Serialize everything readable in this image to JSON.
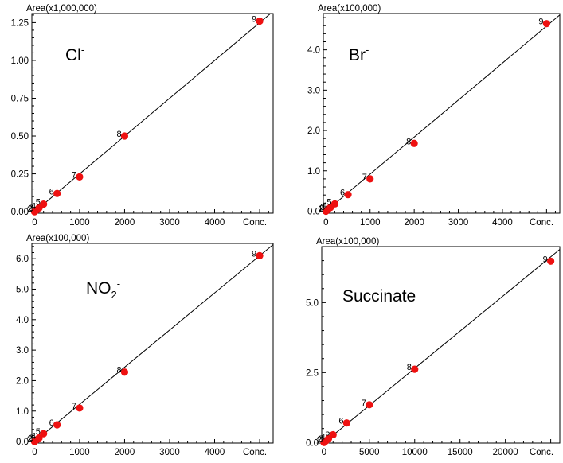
{
  "chart_data": [
    {
      "type": "scatter",
      "ion": {
        "base": "Cl",
        "sub": "",
        "sup": "-"
      },
      "ylabel": "Area(x1,000,000)",
      "xlabel": "Conc.",
      "xlim": [
        -60,
        5300
      ],
      "ylim": [
        -0.01,
        1.31
      ],
      "xticks": [
        0,
        1000,
        2000,
        3000,
        4000
      ],
      "xtick_labels": [
        "0",
        "1000",
        "2000",
        "3000",
        "4000"
      ],
      "yticks": [
        0.0,
        0.25,
        0.5,
        0.75,
        1.0,
        1.25
      ],
      "ytick_labels": [
        "0.00",
        "0.25",
        "0.50",
        "0.75",
        "1.00",
        "1.25"
      ],
      "fit_line": [
        [
          -60,
          -0.0155
        ],
        [
          5300,
          1.3245
        ]
      ],
      "points": [
        {
          "label": "1",
          "x": 0,
          "y": 0.0
        },
        {
          "label": "2",
          "x": 20,
          "y": 0.005
        },
        {
          "label": "3",
          "x": 50,
          "y": 0.012
        },
        {
          "label": "4",
          "x": 100,
          "y": 0.025
        },
        {
          "label": "5",
          "x": 200,
          "y": 0.05
        },
        {
          "label": "6",
          "x": 500,
          "y": 0.12
        },
        {
          "label": "7",
          "x": 1000,
          "y": 0.23
        },
        {
          "label": "8",
          "x": 2000,
          "y": 0.5
        },
        {
          "label": "9",
          "x": 5000,
          "y": 1.26
        }
      ]
    },
    {
      "type": "scatter",
      "ion": {
        "base": "Br",
        "sub": "",
        "sup": "-"
      },
      "ylabel": "Area(x100,000)",
      "xlabel": "Conc.",
      "xlim": [
        -60,
        5300
      ],
      "ylim": [
        -0.05,
        4.9
      ],
      "xticks": [
        0,
        1000,
        2000,
        3000,
        4000
      ],
      "xtick_labels": [
        "0",
        "1000",
        "2000",
        "3000",
        "4000"
      ],
      "yticks": [
        0.0,
        1.0,
        2.0,
        3.0,
        4.0
      ],
      "ytick_labels": [
        "0.0",
        "1.0",
        "2.0",
        "3.0",
        "4.0"
      ],
      "fit_line": [
        [
          -60,
          -0.055
        ],
        [
          5300,
          4.865
        ]
      ],
      "points": [
        {
          "label": "1",
          "x": 0,
          "y": 0.0
        },
        {
          "label": "2",
          "x": 20,
          "y": 0.02
        },
        {
          "label": "3",
          "x": 50,
          "y": 0.05
        },
        {
          "label": "4",
          "x": 100,
          "y": 0.09
        },
        {
          "label": "5",
          "x": 200,
          "y": 0.18
        },
        {
          "label": "6",
          "x": 500,
          "y": 0.41
        },
        {
          "label": "7",
          "x": 1000,
          "y": 0.8
        },
        {
          "label": "8",
          "x": 2000,
          "y": 1.68
        },
        {
          "label": "9",
          "x": 5000,
          "y": 4.65
        }
      ]
    },
    {
      "type": "scatter",
      "ion": {
        "base": "NO",
        "sub": "2",
        "sup": "-"
      },
      "ylabel": "Area(x100,000)",
      "xlabel": "Conc.",
      "xlim": [
        -60,
        5300
      ],
      "ylim": [
        -0.05,
        6.5
      ],
      "xticks": [
        0,
        1000,
        2000,
        3000,
        4000
      ],
      "xtick_labels": [
        "0",
        "1000",
        "2000",
        "3000",
        "4000"
      ],
      "yticks": [
        0.0,
        1.0,
        2.0,
        3.0,
        4.0,
        5.0,
        6.0
      ],
      "ytick_labels": [
        "0.0",
        "1.0",
        "2.0",
        "3.0",
        "4.0",
        "5.0",
        "6.0"
      ],
      "fit_line": [
        [
          -60,
          -0.07
        ],
        [
          5300,
          6.46
        ]
      ],
      "points": [
        {
          "label": "1",
          "x": 0,
          "y": 0.0
        },
        {
          "label": "2",
          "x": 20,
          "y": 0.03
        },
        {
          "label": "3",
          "x": 50,
          "y": 0.06
        },
        {
          "label": "4",
          "x": 100,
          "y": 0.12
        },
        {
          "label": "5",
          "x": 200,
          "y": 0.26
        },
        {
          "label": "6",
          "x": 500,
          "y": 0.55
        },
        {
          "label": "7",
          "x": 1000,
          "y": 1.1
        },
        {
          "label": "8",
          "x": 2000,
          "y": 2.28
        },
        {
          "label": "9",
          "x": 5000,
          "y": 6.1
        }
      ]
    },
    {
      "type": "scatter",
      "ion": {
        "base": "Succinate",
        "sub": "",
        "sup": ""
      },
      "ylabel": "Area(x100,000)",
      "xlabel": "Conc.",
      "xlim": [
        -250,
        26000
      ],
      "ylim": [
        -0.02,
        7.0
      ],
      "xticks": [
        0,
        5000,
        10000,
        15000,
        20000
      ],
      "xtick_labels": [
        "0",
        "5000",
        "10000",
        "15000",
        "20000"
      ],
      "yticks": [
        0.0,
        2.5,
        5.0
      ],
      "ytick_labels": [
        "0.0",
        "2.5",
        "5.0"
      ],
      "fit_line": [
        [
          -250,
          -0.07
        ],
        [
          26000,
          6.9
        ]
      ],
      "points": [
        {
          "label": "1",
          "x": 0,
          "y": 0.0
        },
        {
          "label": "2",
          "x": 100,
          "y": 0.03
        },
        {
          "label": "3",
          "x": 250,
          "y": 0.07
        },
        {
          "label": "4",
          "x": 500,
          "y": 0.14
        },
        {
          "label": "5",
          "x": 1000,
          "y": 0.28
        },
        {
          "label": "6",
          "x": 2500,
          "y": 0.7
        },
        {
          "label": "7",
          "x": 5000,
          "y": 1.35
        },
        {
          "label": "8",
          "x": 10000,
          "y": 2.62
        },
        {
          "label": "9",
          "x": 25000,
          "y": 6.48
        }
      ]
    }
  ],
  "colors": {
    "marker": "#ee1111",
    "line": "#000000",
    "axis": "#000000"
  },
  "icons": {
    "marker": "red-dot"
  }
}
